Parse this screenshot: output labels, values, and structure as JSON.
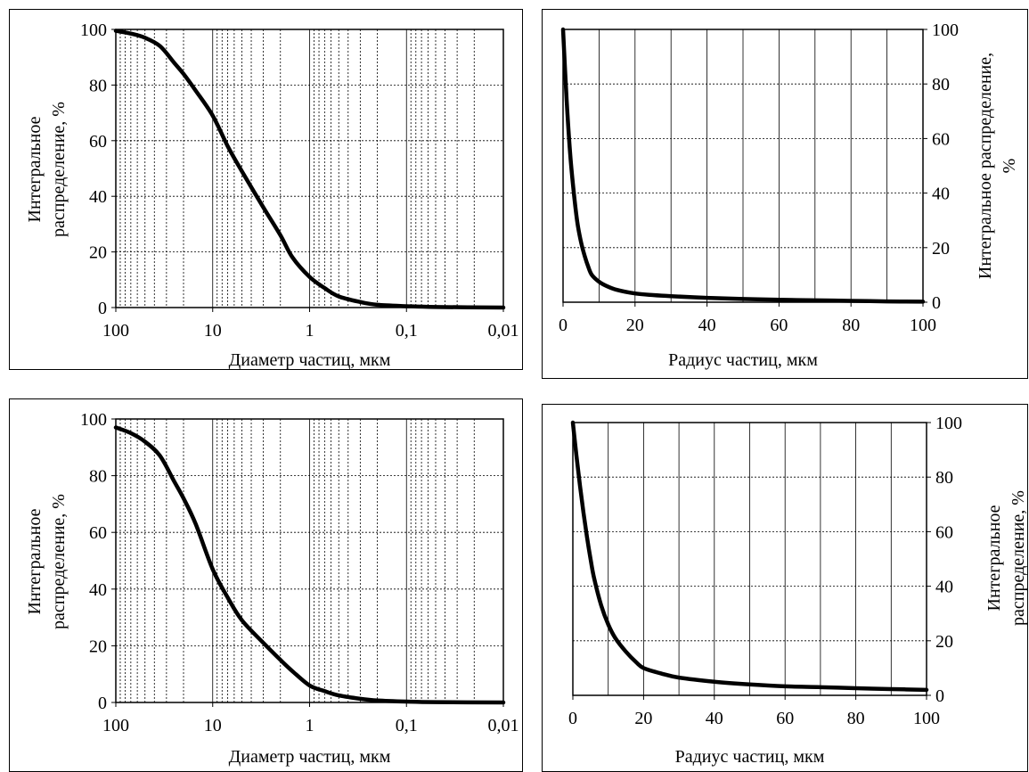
{
  "chart_data": [
    {
      "type": "line",
      "xlabel": "Диаметр частиц, мкм",
      "ylabel": [
        "Интегральное",
        "распределение, %"
      ],
      "x_scale": "log",
      "x_reversed": true,
      "xlim": [
        100,
        0.01
      ],
      "ylim": [
        0,
        100
      ],
      "x_ticks": [
        100,
        10,
        1,
        0.1,
        0.01
      ],
      "x_tick_labels": [
        "100",
        "10",
        "1",
        "0,1",
        "0,01"
      ],
      "y_ticks": [
        0,
        20,
        40,
        60,
        80,
        100
      ],
      "y_tick_labels": [
        "0",
        "20",
        "40",
        "60",
        "80",
        "100"
      ],
      "grid": true,
      "y_axis_side": "left",
      "series": [
        {
          "x": [
            100,
            70,
            50,
            35,
            25,
            20,
            15,
            10,
            7,
            5,
            3,
            2,
            1.5,
            1,
            0.7,
            0.5,
            0.3,
            0.2,
            0.1,
            0.05,
            0.01
          ],
          "y": [
            99.5,
            98.5,
            97,
            94,
            88,
            84,
            78,
            69,
            58,
            49,
            36,
            26,
            18,
            11,
            7,
            4,
            2,
            1,
            0.5,
            0.2,
            0
          ]
        }
      ]
    },
    {
      "type": "line",
      "xlabel": "Радиус частиц, мкм",
      "ylabel": [
        "Интегральное распределение,",
        "%"
      ],
      "x_scale": "linear",
      "xlim": [
        0,
        100
      ],
      "ylim": [
        0,
        100
      ],
      "x_ticks": [
        0,
        20,
        40,
        60,
        80,
        100
      ],
      "x_tick_labels": [
        "0",
        "20",
        "40",
        "60",
        "80",
        "100"
      ],
      "y_ticks": [
        0,
        20,
        40,
        60,
        80,
        100
      ],
      "y_tick_labels": [
        "0",
        "20",
        "40",
        "60",
        "80",
        "100"
      ],
      "grid": true,
      "y_axis_side": "right",
      "series": [
        {
          "x": [
            0,
            1,
            2,
            3,
            4,
            5,
            6,
            7,
            8,
            10,
            12,
            15,
            20,
            25,
            30,
            40,
            50,
            60,
            70,
            80,
            90,
            100
          ],
          "y": [
            100,
            74,
            54,
            40,
            29,
            22,
            17,
            13,
            10,
            7.5,
            6,
            4.5,
            3.2,
            2.6,
            2.2,
            1.6,
            1.2,
            0.9,
            0.7,
            0.5,
            0.3,
            0.2
          ]
        }
      ]
    },
    {
      "type": "line",
      "xlabel": "Диаметр частиц, мкм",
      "ylabel": [
        "Интегральное",
        "распределение, %"
      ],
      "x_scale": "log",
      "x_reversed": true,
      "xlim": [
        100,
        0.01
      ],
      "ylim": [
        0,
        100
      ],
      "x_ticks": [
        100,
        10,
        1,
        0.1,
        0.01
      ],
      "x_tick_labels": [
        "100",
        "10",
        "1",
        "0,1",
        "0,01"
      ],
      "y_ticks": [
        0,
        20,
        40,
        60,
        80,
        100
      ],
      "y_tick_labels": [
        "0",
        "20",
        "40",
        "60",
        "80",
        "100"
      ],
      "grid": true,
      "y_axis_side": "left",
      "series": [
        {
          "x": [
            100,
            70,
            50,
            35,
            25,
            20,
            15,
            10,
            7,
            5,
            3,
            2,
            1.5,
            1,
            0.7,
            0.5,
            0.3,
            0.2,
            0.1,
            0.05,
            0.01
          ],
          "y": [
            97,
            95,
            92,
            87,
            78,
            72,
            63,
            47,
            37,
            29,
            21,
            15,
            11,
            6,
            4,
            2.5,
            1.3,
            0.7,
            0.3,
            0.1,
            0
          ]
        }
      ]
    },
    {
      "type": "line",
      "xlabel": "Радиус частиц, мкм",
      "ylabel": [
        "Интегральное",
        "распределение, %"
      ],
      "x_scale": "linear",
      "xlim": [
        0,
        100
      ],
      "ylim": [
        0,
        100
      ],
      "x_ticks": [
        0,
        20,
        40,
        60,
        80,
        100
      ],
      "x_tick_labels": [
        "0",
        "20",
        "40",
        "60",
        "80",
        "100"
      ],
      "y_ticks": [
        0,
        20,
        40,
        60,
        80,
        100
      ],
      "y_tick_labels": [
        "0",
        "20",
        "40",
        "60",
        "80",
        "100"
      ],
      "grid": true,
      "y_axis_side": "right",
      "series": [
        {
          "x": [
            0,
            1,
            2,
            3,
            4,
            5,
            6,
            8,
            10,
            12,
            15,
            18,
            20,
            25,
            30,
            40,
            50,
            60,
            70,
            80,
            90,
            100
          ],
          "y": [
            100,
            88,
            77,
            67,
            58,
            50,
            43,
            33,
            26,
            21,
            16,
            12,
            10,
            8,
            6.5,
            5,
            4,
            3.3,
            3,
            2.6,
            2.3,
            2
          ]
        }
      ]
    }
  ]
}
